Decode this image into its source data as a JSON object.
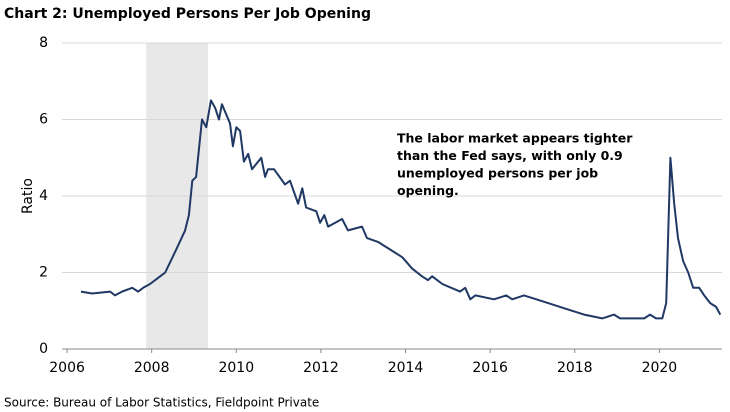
{
  "chart_data": {
    "type": "line",
    "title": "Chart 2: Unemployed Persons Per Job Opening",
    "y_label": "Ratio",
    "source": "Source: Bureau of Labor Statistics, Fieldpoint Private",
    "annotation": [
      "The labor market appears tighter",
      "than the Fed says, with only 0.9",
      "unemployed persons per job",
      "opening."
    ],
    "shaded_region": [
      2007.87,
      2009.33
    ],
    "shade_color": "#e8e8e8",
    "color": "#1f3864",
    "x": [
      2006.33,
      2006.59,
      2007.02,
      2007.13,
      2007.3,
      2007.54,
      2007.68,
      2007.8,
      2007.96,
      2008.2,
      2008.32,
      2008.58,
      2008.79,
      2008.88,
      2008.96,
      2009.05,
      2009.19,
      2009.29,
      2009.4,
      2009.5,
      2009.59,
      2009.66,
      2009.85,
      2009.92,
      2010.0,
      2010.09,
      2010.18,
      2010.28,
      2010.37,
      2010.59,
      2010.68,
      2010.75,
      2010.89,
      2011.15,
      2011.27,
      2011.46,
      2011.56,
      2011.65,
      2011.89,
      2011.98,
      2012.08,
      2012.17,
      2012.5,
      2012.64,
      2012.97,
      2013.09,
      2013.35,
      2013.64,
      2013.92,
      2014.16,
      2014.39,
      2014.53,
      2014.63,
      2014.87,
      2015.29,
      2015.41,
      2015.53,
      2015.65,
      2016.09,
      2016.38,
      2016.52,
      2016.8,
      2017.09,
      2017.37,
      2017.65,
      2017.94,
      2018.22,
      2018.65,
      2018.93,
      2019.07,
      2019.64,
      2019.78,
      2019.92,
      2020.07,
      2020.16,
      2020.26,
      2020.35,
      2020.44,
      2020.56,
      2020.68,
      2020.8,
      2020.94,
      2021.06,
      2021.2,
      2021.34,
      2021.44
    ],
    "values": [
      1.5,
      1.45,
      1.5,
      1.4,
      1.5,
      1.6,
      1.5,
      1.6,
      1.7,
      1.9,
      2.0,
      2.6,
      3.1,
      3.5,
      4.4,
      4.5,
      6.0,
      5.8,
      6.5,
      6.3,
      6.0,
      6.4,
      5.9,
      5.3,
      5.8,
      5.7,
      4.9,
      5.1,
      4.7,
      5.0,
      4.5,
      4.7,
      4.7,
      4.3,
      4.4,
      3.8,
      4.2,
      3.7,
      3.6,
      3.3,
      3.5,
      3.2,
      3.4,
      3.1,
      3.2,
      2.9,
      2.8,
      2.6,
      2.4,
      2.1,
      1.9,
      1.8,
      1.9,
      1.7,
      1.5,
      1.6,
      1.3,
      1.4,
      1.3,
      1.4,
      1.3,
      1.4,
      1.3,
      1.2,
      1.1,
      1.0,
      0.9,
      0.8,
      0.9,
      0.8,
      0.8,
      0.9,
      0.8,
      0.8,
      1.2,
      5.0,
      3.8,
      2.9,
      2.3,
      2.0,
      1.6,
      1.6,
      1.4,
      1.2,
      1.1,
      0.9
    ],
    "xlim": [
      2005.88,
      2021.48
    ],
    "xticks": [
      2006,
      2008,
      2010,
      2012,
      2014,
      2016,
      2018,
      2020
    ],
    "ylim": [
      0,
      8
    ],
    "yticks": [
      0,
      2,
      4,
      6,
      8
    ],
    "grid": true
  }
}
